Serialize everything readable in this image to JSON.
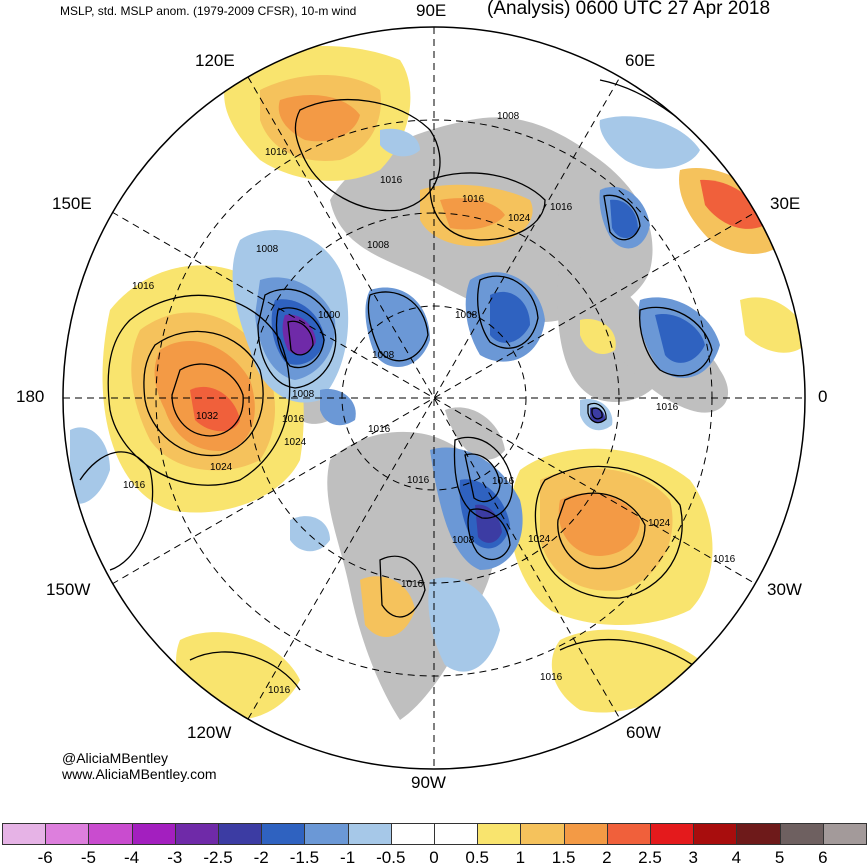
{
  "header": {
    "left_title": "MSLP, std. MSLP anom. (1979-2009 CFSR), 10-m wind",
    "right_title": "(Analysis) 0600 UTC 27 Apr 2018"
  },
  "credits": {
    "handle": "@AliciaMBentley",
    "site": "www.AliciaMBentley.com"
  },
  "longitude_labels": [
    "90E",
    "60E",
    "30E",
    "0",
    "30W",
    "60W",
    "90W",
    "120W",
    "150W",
    "180",
    "150E",
    "120E"
  ],
  "isobar_labels": [
    "1008",
    "1016",
    "1016",
    "1016",
    "1024",
    "1016",
    "1008",
    "1016",
    "1008",
    "1000",
    "1008",
    "1008",
    "1008",
    "1016",
    "1032",
    "1024",
    "1016",
    "1016",
    "1016",
    "1016",
    "1008",
    "1024",
    "1024",
    "1016",
    "1016",
    "1016",
    "1016",
    "1016"
  ],
  "colorbar": {
    "ticks": [
      "-6",
      "-5",
      "-4",
      "-3",
      "-2.5",
      "-2",
      "-1.5",
      "-1",
      "-0.5",
      "0",
      "0.5",
      "1",
      "1.5",
      "2",
      "2.5",
      "3",
      "4",
      "5",
      "6"
    ],
    "colors": [
      "#e6b3e6",
      "#dd7fdd",
      "#c94ccf",
      "#a31fbf",
      "#6f2aa8",
      "#3c3ca3",
      "#2f62c0",
      "#6b98d6",
      "#a6c8e8",
      "#ffffff",
      "#ffffff",
      "#f9e46e",
      "#f5c25c",
      "#f39a45",
      "#f0603b",
      "#e41a1c",
      "#a80d0d",
      "#6e1a1a",
      "#6e6060",
      "#a39a9a"
    ]
  },
  "map_colors": {
    "land": "#bfbfbf",
    "neg_weak": "#a6c8e8",
    "neg_mod": "#6b98d6",
    "neg_strong": "#2f62c0",
    "neg_deep": "#3c3ca3",
    "neg_extreme": "#6f2aa8",
    "pos_weak": "#f9e46e",
    "pos_mod": "#f5c25c",
    "pos_strong": "#f39a45",
    "pos_high": "#f0603b"
  }
}
